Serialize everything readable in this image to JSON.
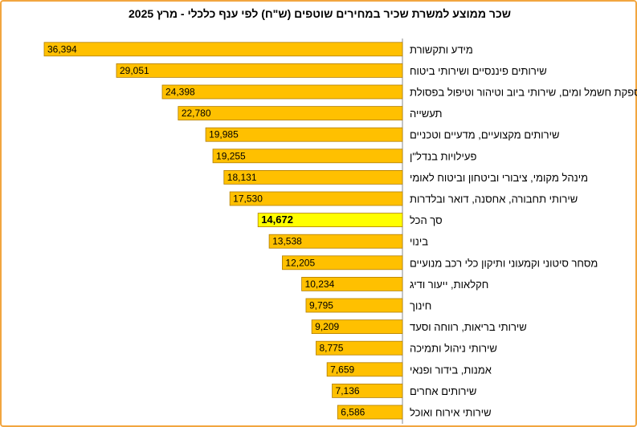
{
  "chart_data": {
    "type": "bar",
    "orientation": "horizontal",
    "direction": "rtl",
    "title": "שכר ממוצע למשרת שכיר במחירים שוטפים (ש\"ח) לפי ענף כלכלי - מרץ 2025",
    "xlabel": "",
    "ylabel": "",
    "grid": false,
    "legend": "none",
    "bar_color": "#FFC000",
    "highlight_color": "#FFFF00",
    "bar_border_color": "#B07D00",
    "categories": [
      "מידע ותקשורת",
      "שירותים פיננסיים ושירותי ביטוח",
      "אספקת חשמל ומים, שירותי ביוב וטיהור וטיפול בפסולת",
      "תעשייה",
      "שירותים מקצועיים, מדעיים וטכניים",
      "פעילויות בנדל\"ן",
      "מינהל מקומי, ציבורי וביטחון וביטוח לאומי",
      "שירותי תחבורה, אחסנה, דואר ובלדרות",
      "סך הכל",
      "בינוי",
      "מסחר סיטוני וקמעוני ותיקון כלי רכב מנועיים",
      "חקלאות, ייעור ודיג",
      "חינוך",
      "שירותי בריאות, רווחה וסעד",
      "שירותי ניהול ותמיכה",
      "אמנות, בידור ופנאי",
      "שירותים אחרים",
      "שירותי אירוח ואוכל"
    ],
    "values": [
      36394,
      29051,
      24398,
      22780,
      19985,
      19255,
      18131,
      17530,
      14672,
      13538,
      12205,
      10234,
      9795,
      9209,
      8775,
      7659,
      7136,
      6586
    ],
    "value_labels": [
      "36,394",
      "29,051",
      "24,398",
      "22,780",
      "19,985",
      "19,255",
      "18,131",
      "17,530",
      "14,672",
      "13,538",
      "12,205",
      "10,234",
      "9,795",
      "9,209",
      "8,775",
      "7,659",
      "7,136",
      "6,586"
    ],
    "highlight_category": "סך הכל"
  }
}
